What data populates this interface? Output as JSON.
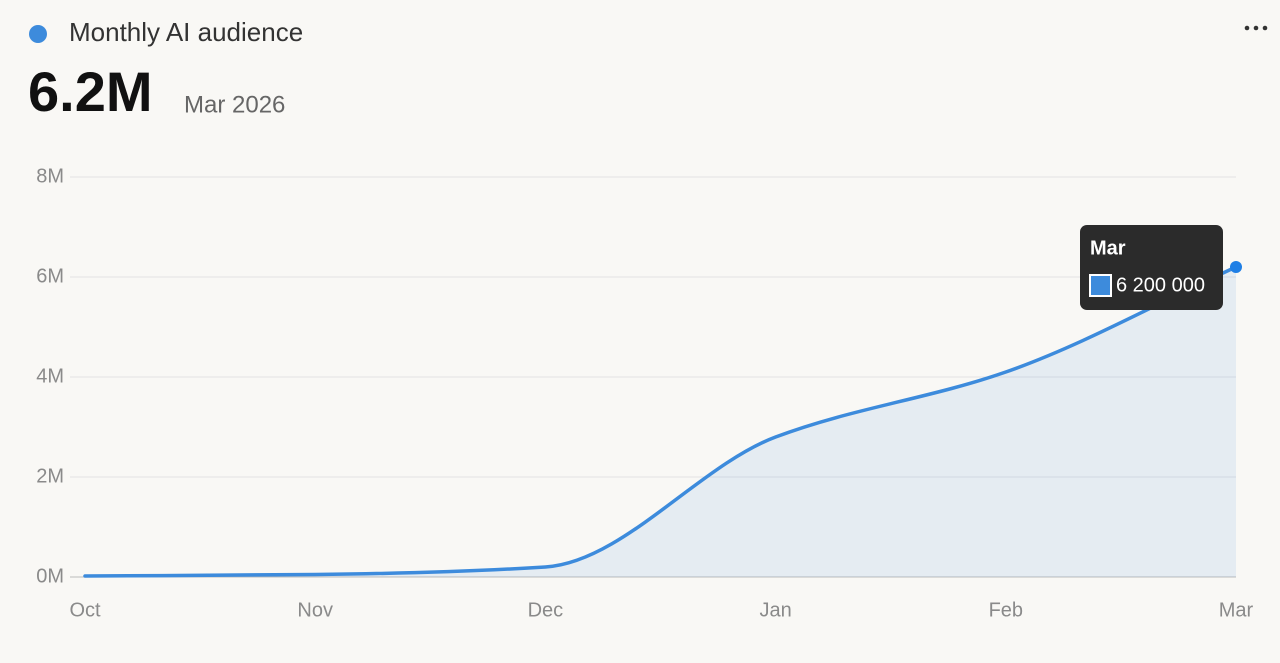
{
  "chart_data": {
    "type": "area",
    "headline": "6.2M",
    "headline_period": "Mar 2026",
    "categories": [
      "Oct",
      "Nov",
      "Dec",
      "Jan",
      "Feb",
      "Mar"
    ],
    "series": [
      {
        "name": "Monthly AI audience",
        "color": "#3d8bdc",
        "values": [
          20000,
          50000,
          200000,
          2800000,
          4100000,
          6200000
        ]
      }
    ],
    "ylim": [
      0,
      8000000
    ],
    "yticks": [
      {
        "value": 0,
        "label": "0M"
      },
      {
        "value": 2000000,
        "label": "2M"
      },
      {
        "value": 4000000,
        "label": "4M"
      },
      {
        "value": 6000000,
        "label": "6M"
      },
      {
        "value": 8000000,
        "label": "8M"
      }
    ],
    "grid": true,
    "tooltip": {
      "label": "6 200 000"
    }
  }
}
